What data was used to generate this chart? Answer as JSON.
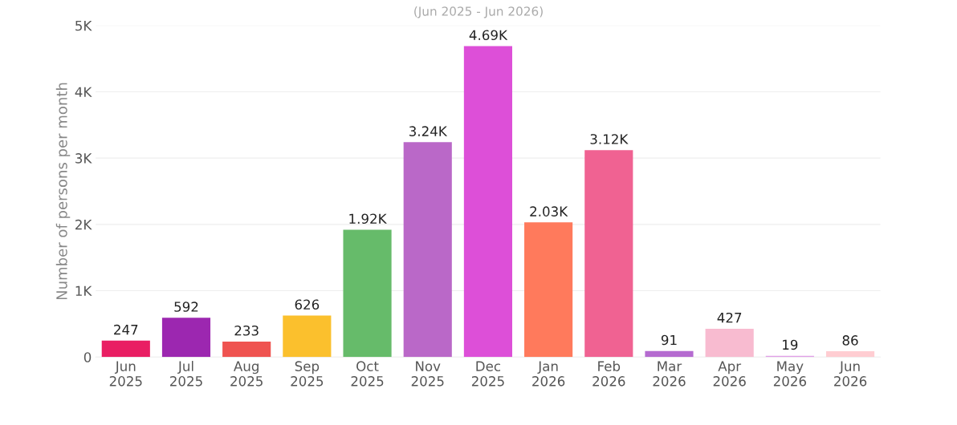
{
  "chart_data": {
    "type": "bar",
    "subtitle": "(Jun 2025 - Jun 2026)",
    "ylabel": "Number of persons per month",
    "categories": [
      "Jun\n2025",
      "Jul\n2025",
      "Aug\n2025",
      "Sep\n2025",
      "Oct\n2025",
      "Nov\n2025",
      "Dec\n2025",
      "Jan\n2026",
      "Feb\n2026",
      "Mar\n2026",
      "Apr\n2026",
      "May\n2026",
      "Jun\n2026"
    ],
    "values": [
      247,
      592,
      233,
      626,
      1920,
      3240,
      4690,
      2030,
      3120,
      91,
      427,
      19,
      86
    ],
    "value_labels": [
      "247",
      "592",
      "233",
      "626",
      "1.92K",
      "3.24K",
      "4.69K",
      "2.03K",
      "3.12K",
      "91",
      "427",
      "19",
      "86"
    ],
    "colors": [
      "#e91e63",
      "#9c27b0",
      "#ef5350",
      "#fbc02d",
      "#66bb6a",
      "#ba68c8",
      "#dd4fd8",
      "#ff7a5c",
      "#f06292",
      "#b56bd0",
      "#f8bbd0",
      "#e1a0e8",
      "#ffcdd2"
    ],
    "ylim": [
      0,
      5000
    ],
    "yticks": [
      0,
      {
        "value": 1000,
        "label": "1K"
      },
      {
        "value": 2000,
        "label": "2K"
      },
      {
        "value": 3000,
        "label": "3K"
      },
      {
        "value": 4000,
        "label": "4K"
      },
      {
        "value": 5000,
        "label": "5K"
      }
    ],
    "grid": "y"
  }
}
